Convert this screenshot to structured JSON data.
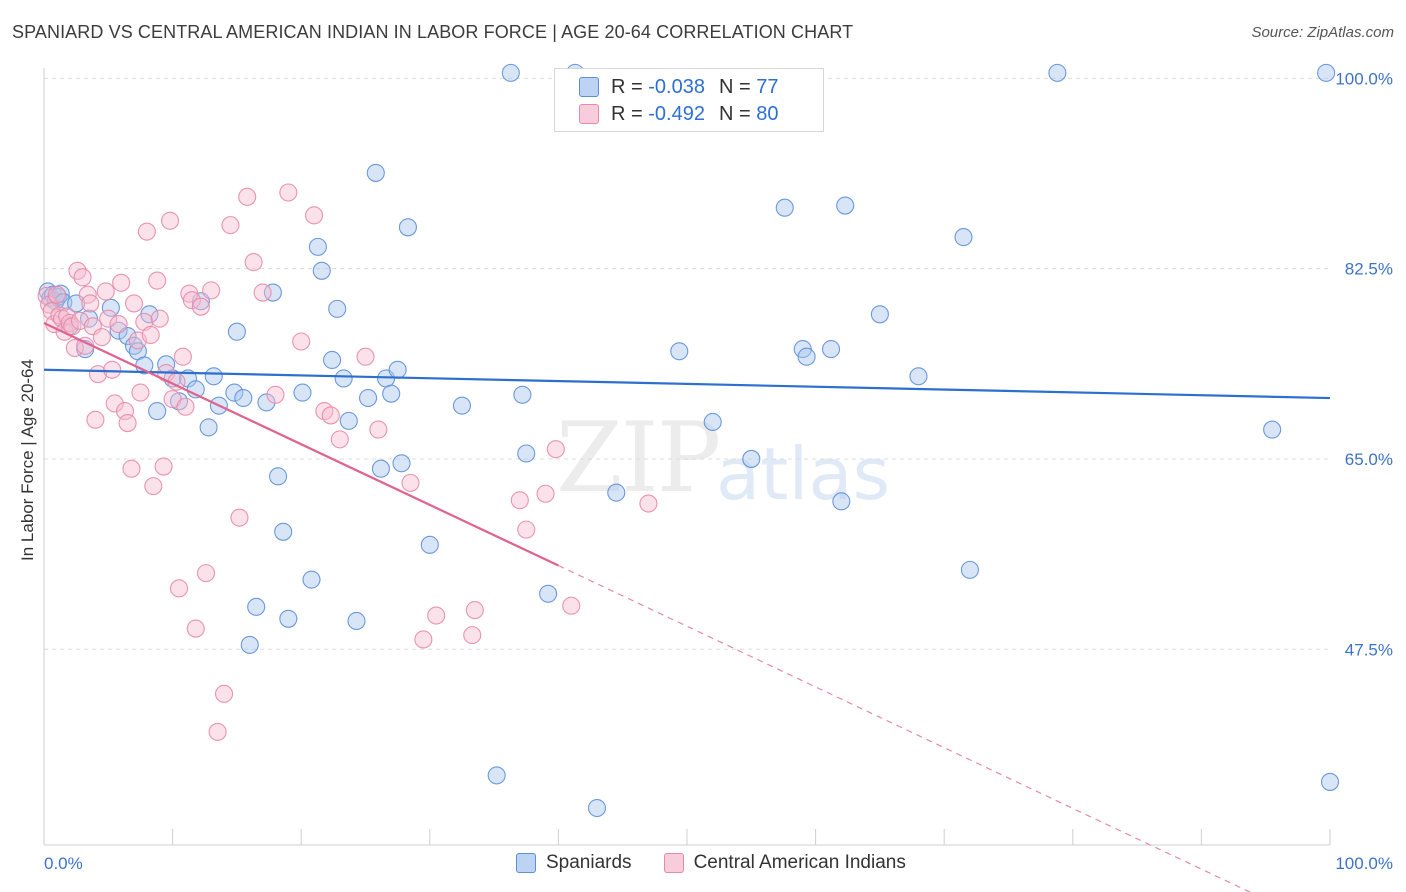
{
  "chart_data": {
    "type": "scatter",
    "title": "SPANIARD VS CENTRAL AMERICAN INDIAN IN LABOR FORCE | AGE 20-64 CORRELATION CHART",
    "source": "Source: ZipAtlas.com",
    "ylabel": "In Labor Force | Age 20-64",
    "xlabel": "",
    "xlim": [
      0,
      100
    ],
    "ylim": [
      29.5,
      101.5
    ],
    "x_tick_labels": [
      "0.0%",
      "100.0%"
    ],
    "y_ticks": [
      100.0,
      82.5,
      65.0,
      47.5
    ],
    "y_tick_labels": [
      "100.0%",
      "82.5%",
      "65.0%",
      "47.5%"
    ],
    "watermark": {
      "left": "ZIP",
      "right": "atlas"
    },
    "legend": [
      {
        "r_label": "R =",
        "r_value": "-0.038",
        "n_label": "N =",
        "n_value": "77"
      },
      {
        "r_label": "R =",
        "r_value": "-0.492",
        "n_label": "N =",
        "n_value": "80"
      }
    ],
    "series": [
      {
        "name": "Spaniards",
        "color": "#5b8fd8",
        "fill": "#a9c6ee",
        "trend": {
          "x0": 0,
          "y0": 73.2,
          "x1": 100,
          "y1": 70.6
        },
        "points": [
          [
            0.3,
            80.4
          ],
          [
            0.5,
            79.8
          ],
          [
            0.7,
            80.1
          ],
          [
            0.9,
            79.5
          ],
          [
            1.1,
            79.9
          ],
          [
            1.3,
            80.2
          ],
          [
            1.5,
            79.4
          ],
          [
            2.0,
            77.2
          ],
          [
            2.5,
            79.3
          ],
          [
            3.2,
            75.1
          ],
          [
            3.5,
            77.9
          ],
          [
            5.2,
            78.9
          ],
          [
            5.8,
            76.8
          ],
          [
            6.5,
            76.3
          ],
          [
            7.0,
            75.4
          ],
          [
            7.3,
            74.9
          ],
          [
            7.8,
            73.6
          ],
          [
            8.2,
            78.3
          ],
          [
            8.8,
            69.4
          ],
          [
            9.5,
            73.7
          ],
          [
            10.0,
            72.4
          ],
          [
            10.5,
            70.3
          ],
          [
            11.2,
            72.4
          ],
          [
            11.8,
            71.4
          ],
          [
            12.2,
            79.5
          ],
          [
            12.8,
            67.9
          ],
          [
            13.2,
            72.6
          ],
          [
            13.6,
            69.9
          ],
          [
            14.8,
            71.1
          ],
          [
            15.0,
            76.7
          ],
          [
            15.5,
            70.6
          ],
          [
            16.0,
            47.9
          ],
          [
            16.5,
            51.4
          ],
          [
            17.3,
            70.2
          ],
          [
            17.8,
            80.3
          ],
          [
            18.2,
            63.4
          ],
          [
            18.6,
            58.3
          ],
          [
            19.0,
            50.3
          ],
          [
            20.1,
            71.1
          ],
          [
            20.8,
            53.9
          ],
          [
            21.3,
            84.5
          ],
          [
            21.6,
            82.3
          ],
          [
            22.4,
            74.1
          ],
          [
            22.8,
            78.8
          ],
          [
            23.3,
            72.4
          ],
          [
            23.7,
            68.5
          ],
          [
            24.3,
            50.1
          ],
          [
            25.2,
            70.6
          ],
          [
            25.8,
            91.3
          ],
          [
            26.2,
            64.1
          ],
          [
            26.6,
            72.4
          ],
          [
            27.0,
            71.0
          ],
          [
            27.5,
            73.2
          ],
          [
            27.8,
            64.6
          ],
          [
            28.3,
            86.3
          ],
          [
            30.0,
            57.1
          ],
          [
            32.5,
            69.9
          ],
          [
            35.2,
            35.9
          ],
          [
            36.3,
            100.5
          ],
          [
            37.2,
            70.9
          ],
          [
            37.5,
            65.5
          ],
          [
            39.2,
            52.6
          ],
          [
            41.3,
            100.5
          ],
          [
            43.0,
            32.9
          ],
          [
            44.5,
            61.9
          ],
          [
            49.4,
            74.9
          ],
          [
            52.0,
            68.4
          ],
          [
            55.0,
            65.0
          ],
          [
            57.6,
            88.1
          ],
          [
            59.0,
            75.1
          ],
          [
            59.3,
            74.4
          ],
          [
            61.2,
            75.1
          ],
          [
            62.0,
            61.1
          ],
          [
            62.3,
            88.3
          ],
          [
            65.0,
            78.3
          ],
          [
            68.0,
            72.6
          ],
          [
            71.5,
            85.4
          ],
          [
            72.0,
            54.8
          ],
          [
            78.8,
            100.5
          ],
          [
            95.5,
            67.7
          ],
          [
            99.7,
            100.5
          ],
          [
            100.0,
            35.3
          ]
        ]
      },
      {
        "name": "Central American Indians",
        "color": "#e68aa8",
        "fill": "#f6bdd0",
        "trend": {
          "x0": 0,
          "y0": 77.5,
          "x1": 40,
          "y1": 55.2
        },
        "trend_ext": {
          "x0": 40,
          "y0": 55.2,
          "x1": 100,
          "y1": 21.7
        },
        "points": [
          [
            0.2,
            80.0
          ],
          [
            0.4,
            79.2
          ],
          [
            0.6,
            78.6
          ],
          [
            0.8,
            77.4
          ],
          [
            1.0,
            80.1
          ],
          [
            1.2,
            78.2
          ],
          [
            1.4,
            77.9
          ],
          [
            1.6,
            76.7
          ],
          [
            1.8,
            78.1
          ],
          [
            2.0,
            77.5
          ],
          [
            2.2,
            77.2
          ],
          [
            2.4,
            75.2
          ],
          [
            2.6,
            82.3
          ],
          [
            2.8,
            77.7
          ],
          [
            3.0,
            81.7
          ],
          [
            3.2,
            75.4
          ],
          [
            3.4,
            80.1
          ],
          [
            3.6,
            79.3
          ],
          [
            3.8,
            77.2
          ],
          [
            4.0,
            68.6
          ],
          [
            4.2,
            72.8
          ],
          [
            4.5,
            76.2
          ],
          [
            4.8,
            80.4
          ],
          [
            5.0,
            77.9
          ],
          [
            5.3,
            73.2
          ],
          [
            5.5,
            70.1
          ],
          [
            5.8,
            77.4
          ],
          [
            6.0,
            81.2
          ],
          [
            6.3,
            69.4
          ],
          [
            6.5,
            68.3
          ],
          [
            6.8,
            64.1
          ],
          [
            7.0,
            79.3
          ],
          [
            7.3,
            75.9
          ],
          [
            7.5,
            71.1
          ],
          [
            7.8,
            77.6
          ],
          [
            8.0,
            85.9
          ],
          [
            8.3,
            76.4
          ],
          [
            8.5,
            62.5
          ],
          [
            8.8,
            81.4
          ],
          [
            9.0,
            77.9
          ],
          [
            9.3,
            64.3
          ],
          [
            9.5,
            72.9
          ],
          [
            9.8,
            86.9
          ],
          [
            10.0,
            70.5
          ],
          [
            10.3,
            72.1
          ],
          [
            10.5,
            53.1
          ],
          [
            10.8,
            74.4
          ],
          [
            11.0,
            69.8
          ],
          [
            11.3,
            80.2
          ],
          [
            11.5,
            79.6
          ],
          [
            11.8,
            49.4
          ],
          [
            12.2,
            79.0
          ],
          [
            12.6,
            54.5
          ],
          [
            13.0,
            80.5
          ],
          [
            13.5,
            39.9
          ],
          [
            14.0,
            43.4
          ],
          [
            14.5,
            86.5
          ],
          [
            15.2,
            59.6
          ],
          [
            15.8,
            89.1
          ],
          [
            16.3,
            83.1
          ],
          [
            17.0,
            80.3
          ],
          [
            18.0,
            70.9
          ],
          [
            19.0,
            89.5
          ],
          [
            20.0,
            75.8
          ],
          [
            21.0,
            87.4
          ],
          [
            21.8,
            69.4
          ],
          [
            22.3,
            69.0
          ],
          [
            23.0,
            66.8
          ],
          [
            25.0,
            74.4
          ],
          [
            26.0,
            67.7
          ],
          [
            28.5,
            62.8
          ],
          [
            29.5,
            48.4
          ],
          [
            30.5,
            50.6
          ],
          [
            33.3,
            48.8
          ],
          [
            33.5,
            51.1
          ],
          [
            37.0,
            61.2
          ],
          [
            37.5,
            58.5
          ],
          [
            39.0,
            61.8
          ],
          [
            39.8,
            65.9
          ],
          [
            41.0,
            51.5
          ],
          [
            47.0,
            60.9
          ]
        ]
      }
    ]
  }
}
